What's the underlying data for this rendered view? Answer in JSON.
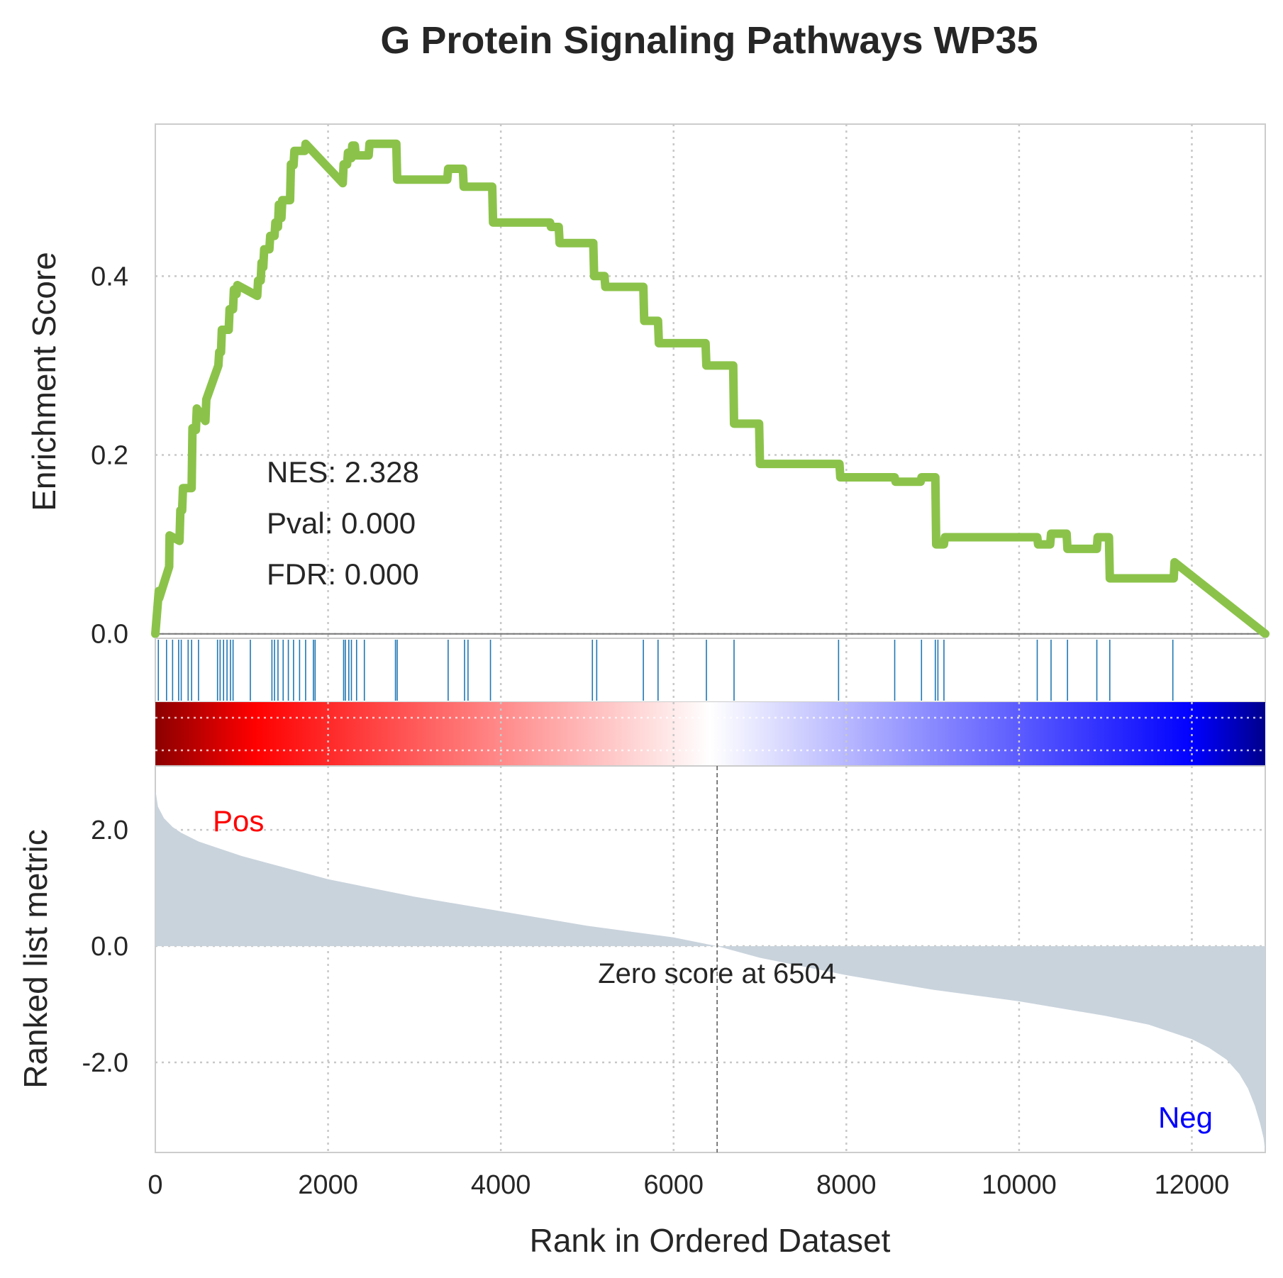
{
  "chart_data": {
    "type": "line",
    "title": "G Protein Signaling Pathways WP35",
    "xlabel": "Rank in Ordered Dataset",
    "xlim": [
      0,
      12850
    ],
    "xticks": [
      0,
      2000,
      4000,
      6000,
      8000,
      10000,
      12000
    ],
    "grid": true,
    "enrichment_panel": {
      "ylabel": "Enrichment Score",
      "ylim": [
        -0.005,
        0.57
      ],
      "yticks": [
        "0.0",
        "0.2",
        "0.4"
      ],
      "ytick_values": [
        0.0,
        0.2,
        0.4
      ],
      "line_color": "#8bc34a",
      "annotations": [
        "NES: 2.328",
        "Pval: 0.000",
        "FDR: 0.000"
      ],
      "running_es": {
        "x": [
          0,
          40,
          45,
          160,
          165,
          280,
          290,
          310,
          320,
          420,
          430,
          470,
          480,
          580,
          590,
          730,
          740,
          760,
          770,
          850,
          860,
          900,
          910,
          940,
          950,
          1180,
          1190,
          1220,
          1230,
          1250,
          1260,
          1320,
          1330,
          1380,
          1390,
          1420,
          1430,
          1460,
          1470,
          1560,
          1570,
          1600,
          1610,
          1730,
          1740,
          2170,
          2180,
          2220,
          2230,
          2270,
          2280,
          2310,
          2320,
          2470,
          2480,
          2790,
          2800,
          3380,
          3390,
          3560,
          3570,
          3900,
          3910,
          4570,
          4580,
          4670,
          4680,
          5070,
          5080,
          5200,
          5210,
          5650,
          5660,
          5820,
          5830,
          6370,
          6380,
          6690,
          6700,
          6990,
          7000,
          7920,
          7930,
          8560,
          8570,
          8860,
          8870,
          9030,
          9040,
          9130,
          9140,
          10210,
          10220,
          10360,
          10370,
          10550,
          10560,
          10900,
          10910,
          11040,
          11050,
          11790,
          11800,
          12850
        ],
        "y": [
          0.0,
          0.048,
          0.04,
          0.075,
          0.11,
          0.104,
          0.138,
          0.138,
          0.163,
          0.163,
          0.23,
          0.228,
          0.252,
          0.238,
          0.262,
          0.3,
          0.315,
          0.315,
          0.34,
          0.34,
          0.363,
          0.363,
          0.385,
          0.38,
          0.39,
          0.378,
          0.395,
          0.395,
          0.415,
          0.41,
          0.43,
          0.43,
          0.445,
          0.445,
          0.46,
          0.455,
          0.48,
          0.465,
          0.485,
          0.485,
          0.525,
          0.524,
          0.54,
          0.54,
          0.548,
          0.504,
          0.525,
          0.525,
          0.538,
          0.532,
          0.546,
          0.546,
          0.535,
          0.535,
          0.548,
          0.548,
          0.508,
          0.508,
          0.52,
          0.52,
          0.5,
          0.5,
          0.46,
          0.46,
          0.455,
          0.455,
          0.437,
          0.437,
          0.4,
          0.4,
          0.388,
          0.388,
          0.35,
          0.35,
          0.325,
          0.325,
          0.3,
          0.3,
          0.235,
          0.235,
          0.19,
          0.19,
          0.175,
          0.175,
          0.17,
          0.17,
          0.175,
          0.175,
          0.1,
          0.1,
          0.108,
          0.108,
          0.1,
          0.1,
          0.112,
          0.112,
          0.095,
          0.095,
          0.108,
          0.108,
          0.062,
          0.062,
          0.08,
          0.0
        ]
      }
    },
    "hit_positions": [
      35,
      130,
      200,
      270,
      300,
      380,
      420,
      500,
      720,
      750,
      790,
      830,
      870,
      900,
      1100,
      1350,
      1380,
      1420,
      1480,
      1540,
      1600,
      1670,
      1740,
      1830,
      1850,
      2180,
      2200,
      2240,
      2270,
      2330,
      2420,
      2780,
      2800,
      3390,
      3580,
      3620,
      3880,
      5060,
      5110,
      5650,
      5820,
      6380,
      6700,
      7910,
      8560,
      8870,
      9030,
      9060,
      9130,
      10210,
      10370,
      10560,
      10900,
      11050,
      11780
    ],
    "hit_color": "#1f77b4",
    "heatmap_colors": [
      "#8b0000",
      "#ff0000",
      "#ffffff",
      "#0000ff",
      "#00008b"
    ],
    "metric_panel": {
      "ylabel": "Ranked list metric",
      "ylim": [
        -3.55,
        3.1
      ],
      "yticks": [
        "2.0",
        "0.0",
        "-2.0"
      ],
      "ytick_values": [
        2.0,
        0.0,
        -2.0
      ],
      "fill_color": "#c9d3dc",
      "pos_label": "Pos",
      "neg_label": "Neg",
      "pos_color": "#ff0000",
      "neg_color": "#0000ff",
      "zero_label": "Zero score at 6504",
      "zero_rank": 6504,
      "metric": {
        "x": [
          0,
          30,
          100,
          200,
          300,
          500,
          700,
          1000,
          1500,
          2000,
          3000,
          4000,
          5000,
          6000,
          6504,
          7000,
          8000,
          9000,
          10000,
          11000,
          11500,
          12000,
          12200,
          12400,
          12550,
          12650,
          12730,
          12790,
          12830,
          12850
        ],
        "y": [
          2.7,
          2.4,
          2.2,
          2.05,
          1.95,
          1.8,
          1.7,
          1.55,
          1.35,
          1.15,
          0.85,
          0.6,
          0.35,
          0.15,
          0.0,
          -0.2,
          -0.5,
          -0.75,
          -0.95,
          -1.2,
          -1.35,
          -1.6,
          -1.75,
          -1.95,
          -2.2,
          -2.45,
          -2.75,
          -3.05,
          -3.3,
          -3.55
        ]
      }
    }
  }
}
